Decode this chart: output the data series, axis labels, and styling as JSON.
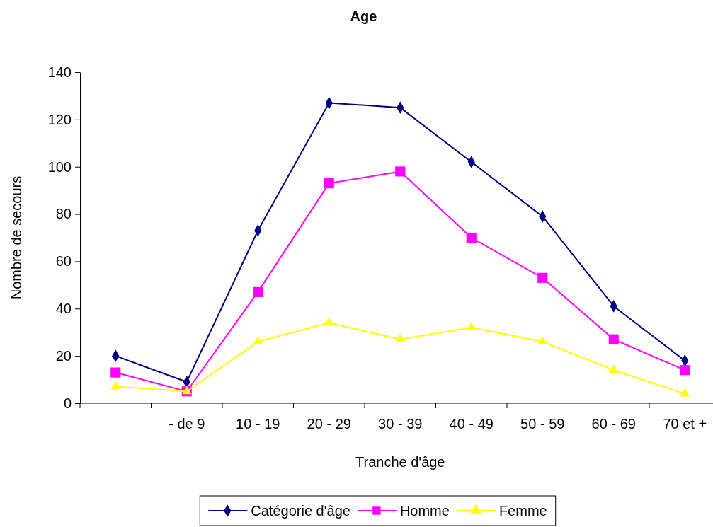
{
  "chart_data": {
    "type": "line",
    "title": "Age",
    "xlabel": "Tranche d'âge",
    "ylabel": "Nombre de secours",
    "categories": [
      null,
      "- de 9",
      "10 - 19",
      "20 - 29",
      "30 - 39",
      "40 - 49",
      "50 - 59",
      "60 - 69",
      "70 et +"
    ],
    "series": [
      {
        "name": "Catégorie d'âge",
        "color": "#000080",
        "marker": "diamond",
        "values": [
          20,
          9,
          73,
          127,
          125,
          102,
          79,
          41,
          18
        ]
      },
      {
        "name": "Homme",
        "color": "#ff00ff",
        "marker": "square",
        "values": [
          13,
          5,
          47,
          93,
          98,
          70,
          53,
          27,
          14
        ]
      },
      {
        "name": "Femme",
        "color": "#ffff00",
        "marker": "triangle",
        "values": [
          7,
          5,
          26,
          34,
          27,
          32,
          26,
          14,
          4
        ]
      }
    ],
    "ylim": [
      0,
      140
    ],
    "yticks": [
      0,
      20,
      40,
      60,
      80,
      100,
      120,
      140
    ],
    "grid": false,
    "legend": "bottom",
    "line_style": "solid"
  }
}
